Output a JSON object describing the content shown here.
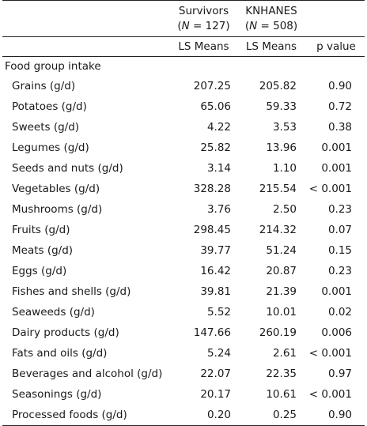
{
  "header": {
    "survivors_label": "Survivors",
    "survivors_n_prefix": "(",
    "survivors_n_var": "N",
    "survivors_n_value": " = 127)",
    "knhanes_label": "KNHANES",
    "knhanes_n_prefix": "(",
    "knhanes_n_var": "N",
    "knhanes_n_value": " = 508)",
    "sub_survivors": "LS Means",
    "sub_knhanes": "LS Means",
    "sub_p": "p value"
  },
  "section_title": "Food group intake",
  "rows": [
    {
      "label": "Grains (g/d)",
      "survivors": "207.25",
      "knhanes": "205.82",
      "p": "0.90"
    },
    {
      "label": "Potatoes (g/d)",
      "survivors": "65.06",
      "knhanes": "59.33",
      "p": "0.72"
    },
    {
      "label": "Sweets (g/d)",
      "survivors": "4.22",
      "knhanes": "3.53",
      "p": "0.38"
    },
    {
      "label": "Legumes (g/d)",
      "survivors": "25.82",
      "knhanes": "13.96",
      "p": "0.001"
    },
    {
      "label": "Seeds and nuts (g/d)",
      "survivors": "3.14",
      "knhanes": "1.10",
      "p": "0.001"
    },
    {
      "label": "Vegetables (g/d)",
      "survivors": "328.28",
      "knhanes": "215.54",
      "p": "< 0.001"
    },
    {
      "label": "Mushrooms (g/d)",
      "survivors": "3.76",
      "knhanes": "2.50",
      "p": "0.23"
    },
    {
      "label": "Fruits (g/d)",
      "survivors": "298.45",
      "knhanes": "214.32",
      "p": "0.07"
    },
    {
      "label": "Meats (g/d)",
      "survivors": "39.77",
      "knhanes": "51.24",
      "p": "0.15"
    },
    {
      "label": "Eggs (g/d)",
      "survivors": "16.42",
      "knhanes": "20.87",
      "p": "0.23"
    },
    {
      "label": "Fishes and shells (g/d)",
      "survivors": "39.81",
      "knhanes": "21.39",
      "p": "0.001"
    },
    {
      "label": "Seaweeds (g/d)",
      "survivors": "5.52",
      "knhanes": "10.01",
      "p": "0.02"
    },
    {
      "label": "Dairy products (g/d)",
      "survivors": "147.66",
      "knhanes": "260.19",
      "p": "0.006"
    },
    {
      "label": "Fats and oils (g/d)",
      "survivors": "5.24",
      "knhanes": "2.61",
      "p": "< 0.001"
    },
    {
      "label": "Beverages and alcohol (g/d)",
      "survivors": "22.07",
      "knhanes": "22.35",
      "p": "0.97"
    },
    {
      "label": "Seasonings (g/d)",
      "survivors": "20.17",
      "knhanes": "10.61",
      "p": "< 0.001"
    },
    {
      "label": "Processed foods (g/d)",
      "survivors": "0.20",
      "knhanes": "0.25",
      "p": "0.90"
    }
  ]
}
